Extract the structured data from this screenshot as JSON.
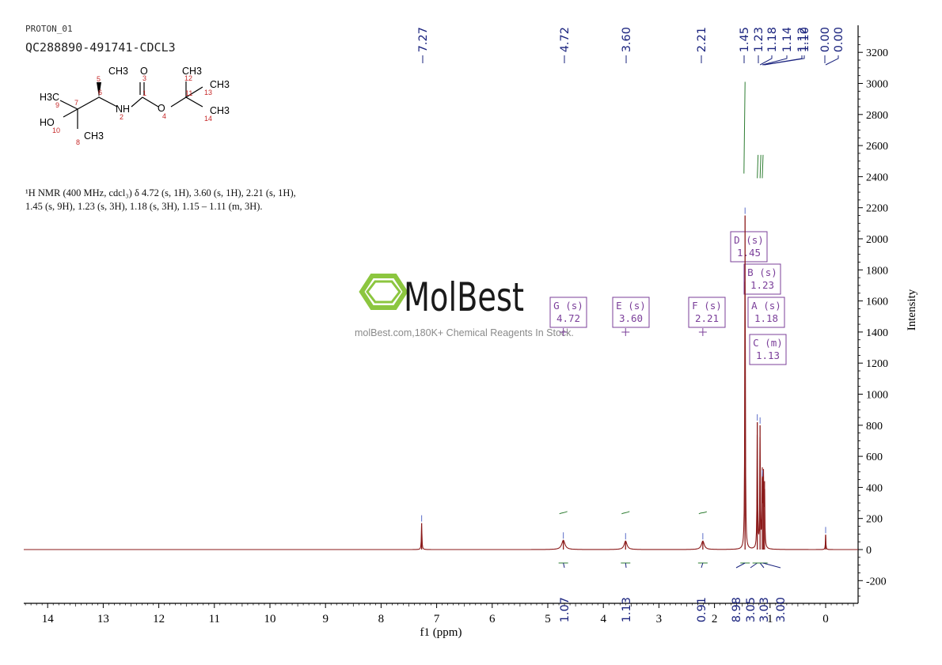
{
  "header": {
    "sample_code": "PROTON_01",
    "sample_id": "QC288890-491741-CDCL3"
  },
  "structure_labels": {
    "atoms": [
      "CH3",
      "O",
      "CH3",
      "H3C",
      "CH3",
      "NH",
      "O",
      "CH3",
      "HO",
      "CH3"
    ],
    "numbers": [
      "5",
      "3",
      "12",
      "6",
      "1",
      "11",
      "13",
      "9",
      "7",
      "2",
      "4",
      "14",
      "10",
      "8"
    ]
  },
  "nmr_description": "¹H NMR (400 MHz, cdcl₃) δ 4.72 (s, 1H), 3.60 (s, 1H), 2.21 (s, 1H), 1.45 (s, 9H), 1.23 (s, 3H), 1.18 (s, 3H), 1.15 – 1.11 (m, 3H).",
  "watermark": {
    "brand": "MolBest",
    "tagline": "molBest.com,180K+ Chemical Reagents In Stock."
  },
  "colors": {
    "spectrum": "#8b1a1a",
    "peak_label": "#1a237e",
    "integral": "#2e7d32",
    "multiplet_box": "#7b3f9a",
    "logo_green": "#8cc63f",
    "logo_text": "#1a1a1a"
  },
  "chart_data": {
    "type": "line",
    "xlabel": "f1 (ppm)",
    "ylabel": "Intensity",
    "xlim": [
      14.5,
      -0.55
    ],
    "ylim": [
      -330,
      3330
    ],
    "x_ticks": [
      14,
      13,
      12,
      11,
      10,
      9,
      8,
      7,
      6,
      5,
      4,
      3,
      2,
      1,
      0
    ],
    "y_ticks": [
      3200,
      3000,
      2800,
      2600,
      2400,
      2200,
      2000,
      1800,
      1600,
      1400,
      1200,
      1000,
      800,
      600,
      400,
      200,
      0,
      -200
    ],
    "grid": false,
    "peak_labels": [
      "7.27",
      "4.72",
      "3.60",
      "2.21",
      "1.45",
      "1.23",
      "1.18",
      "1.14",
      "1.12",
      "1.10",
      "0.00",
      "0.00"
    ],
    "peaks": [
      {
        "ppm": 7.27,
        "height": 170,
        "width": 0.006
      },
      {
        "ppm": 4.72,
        "height": 60,
        "width": 0.035
      },
      {
        "ppm": 3.6,
        "height": 55,
        "width": 0.03
      },
      {
        "ppm": 2.21,
        "height": 55,
        "width": 0.03
      },
      {
        "ppm": 1.45,
        "height": 2150,
        "width": 0.006
      },
      {
        "ppm": 1.23,
        "height": 820,
        "width": 0.006
      },
      {
        "ppm": 1.18,
        "height": 800,
        "width": 0.006
      },
      {
        "ppm": 1.14,
        "height": 460,
        "width": 0.006
      },
      {
        "ppm": 1.12,
        "height": 470,
        "width": 0.006
      },
      {
        "ppm": 1.1,
        "height": 440,
        "width": 0.006
      },
      {
        "ppm": 0.0,
        "height": 95,
        "width": 0.005
      }
    ],
    "integrals": [
      {
        "ppm": 4.72,
        "value": "1.07"
      },
      {
        "ppm": 3.6,
        "value": "1.13"
      },
      {
        "ppm": 2.21,
        "value": "0.91"
      },
      {
        "ppm": 1.45,
        "value": "8.98"
      },
      {
        "ppm": 1.23,
        "value": "3.05"
      },
      {
        "ppm": 1.18,
        "value": "3.03"
      },
      {
        "ppm": 1.13,
        "value": "3.00"
      }
    ],
    "multiplets": [
      {
        "letter": "D",
        "mult": "(s)",
        "ppm": "1.45"
      },
      {
        "letter": "B",
        "mult": "(s)",
        "ppm": "1.23"
      },
      {
        "letter": "G",
        "mult": "(s)",
        "ppm": "4.72"
      },
      {
        "letter": "E",
        "mult": "(s)",
        "ppm": "3.60"
      },
      {
        "letter": "F",
        "mult": "(s)",
        "ppm": "2.21"
      },
      {
        "letter": "A",
        "mult": "(s)",
        "ppm": "1.18"
      },
      {
        "letter": "C",
        "mult": "(m)",
        "ppm": "1.13"
      }
    ]
  }
}
